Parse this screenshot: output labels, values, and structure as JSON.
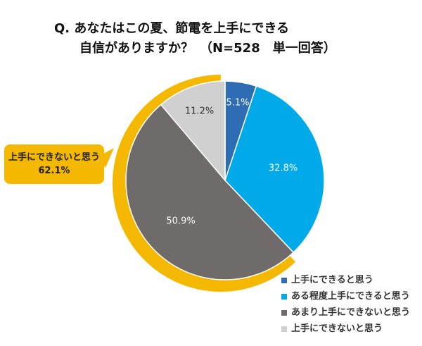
{
  "chart_data": {
    "type": "pie",
    "title": [
      "Q.  あなたはこの夏、節電を上手にできる",
      "自信がありますか？　（N=528　単一回答）"
    ],
    "categories": [
      "上手にできると思う",
      "ある程度上手にできると思う",
      "あまり上手にできないと思う",
      "上手にできないと思う"
    ],
    "values": [
      5.1,
      32.8,
      50.9,
      11.2
    ],
    "labels": [
      "5.1%",
      "32.8%",
      "50.9%",
      "11.2%"
    ],
    "colors": [
      "#2e6db4",
      "#00a9e8",
      "#6f6b6b",
      "#d0d0d0"
    ],
    "label_colors": [
      "#ffffff",
      "#ffffff",
      "#ffffff",
      "#333333"
    ],
    "highlight": {
      "label": "上手にできないと思う",
      "value": "62.1%",
      "color": "#f5b800"
    },
    "legend": "bottom-right"
  }
}
